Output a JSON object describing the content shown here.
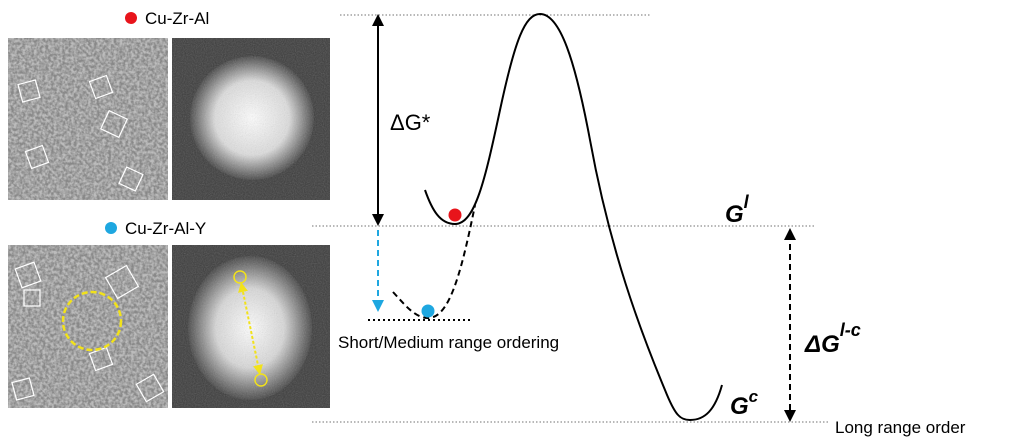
{
  "legend": [
    {
      "label": "Cu-Zr-Al",
      "color": "#e8141b"
    },
    {
      "label": "Cu-Zr-Al-Y",
      "color": "#1ea7e0"
    }
  ],
  "energy_labels": {
    "barrier": "ΔG*",
    "liquid": {
      "base": "G",
      "sup": "l"
    },
    "difference": {
      "base": "ΔG",
      "sup": "l-c"
    },
    "crystal": {
      "base": "G",
      "sup": "c"
    }
  },
  "annotations": {
    "short_range": "Short/Medium range ordering",
    "long_range": "Long range order"
  }
}
